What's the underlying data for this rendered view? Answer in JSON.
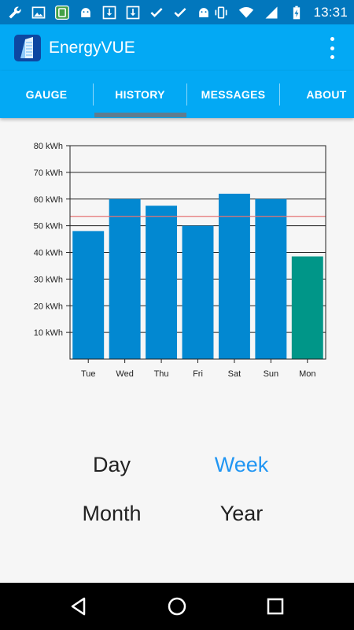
{
  "status_bar": {
    "time": "13:31",
    "left_icons": [
      "wrench-icon",
      "image-icon",
      "app-notification-icon",
      "android-icon",
      "download-icon",
      "download-icon",
      "check-icon",
      "check-icon",
      "android-icon"
    ],
    "right_icons": [
      "vibrate-icon",
      "wifi-icon",
      "signal-icon",
      "battery-charging-icon"
    ]
  },
  "app_bar": {
    "title": "EnergyVUE",
    "logo_icon": "energyvue-logo-icon",
    "menu_icon": "overflow-menu-icon"
  },
  "tabs": [
    {
      "label": "GAUGE",
      "selected": false
    },
    {
      "label": "HISTORY",
      "selected": true
    },
    {
      "label": "MESSAGES",
      "selected": false
    },
    {
      "label": "ABOUT",
      "selected": false
    }
  ],
  "chart_data": {
    "type": "bar",
    "title": "",
    "xlabel": "",
    "ylabel": "",
    "categories": [
      "Tue",
      "Wed",
      "Thu",
      "Fri",
      "Sat",
      "Sun",
      "Mon"
    ],
    "values": [
      48,
      60,
      57.5,
      50,
      62,
      60,
      38.5
    ],
    "ylim": [
      0,
      80
    ],
    "y_ticks": [
      10,
      20,
      30,
      40,
      50,
      60,
      70,
      80
    ],
    "y_tick_labels": [
      "10 kWh",
      "20 kWh",
      "30 kWh",
      "40 kWh",
      "50 kWh",
      "60 kWh",
      "70 kWh",
      "80 kWh"
    ],
    "average_line": 53.5,
    "bar_color": "#0288d1",
    "highlight_index": 6,
    "highlight_color": "#009688",
    "average_line_color": "#e57373",
    "grid": true
  },
  "periods": [
    {
      "label": "Day",
      "active": false
    },
    {
      "label": "Week",
      "active": true
    },
    {
      "label": "Month",
      "active": false
    },
    {
      "label": "Year",
      "active": false
    }
  ],
  "colors": {
    "status_bar": "#0277bd",
    "app_bar": "#03a9f4",
    "accent": "#2196f3"
  },
  "nav_bar": {
    "buttons": [
      "back-icon",
      "home-icon",
      "recents-icon"
    ]
  }
}
